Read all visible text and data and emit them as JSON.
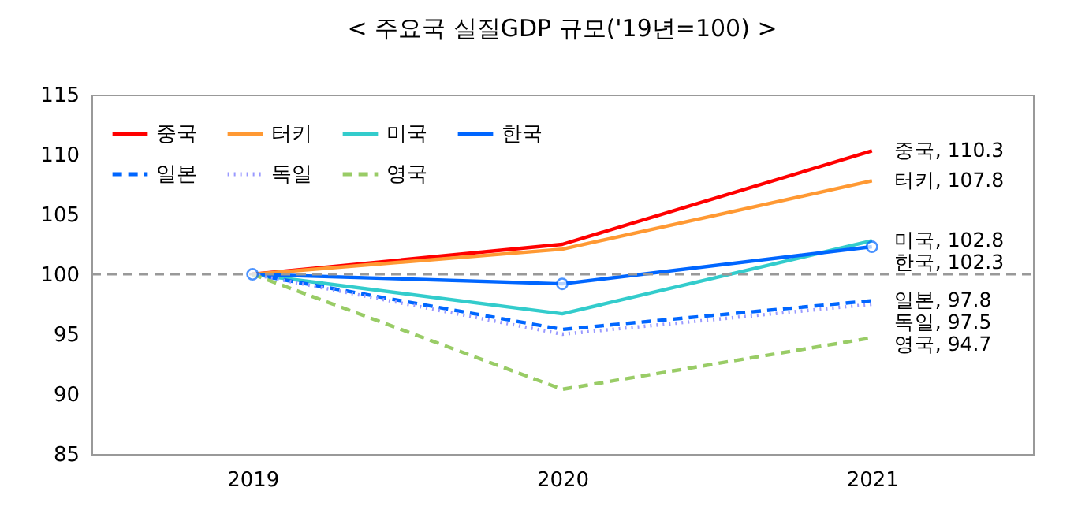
{
  "chart_data": {
    "type": "line",
    "title": "< 주요국 실질GDP 규모('19년=100) >",
    "categories": [
      "2019",
      "2020",
      "2021"
    ],
    "series": [
      {
        "name": "중국",
        "color": "#ff0000",
        "line_style": "solid",
        "marker": "none",
        "values": [
          100,
          102.5,
          110.3
        ]
      },
      {
        "name": "터키",
        "color": "#ff9933",
        "line_style": "solid",
        "marker": "none",
        "values": [
          100,
          102.1,
          107.8
        ]
      },
      {
        "name": "미국",
        "color": "#33cccc",
        "line_style": "solid",
        "marker": "none",
        "values": [
          100,
          96.7,
          102.8
        ]
      },
      {
        "name": "한국",
        "color": "#0066ff",
        "line_style": "solid",
        "marker": "circle",
        "values": [
          100,
          99.2,
          102.3
        ]
      },
      {
        "name": "일본",
        "color": "#0066ff",
        "line_style": "dashed",
        "marker": "none",
        "values": [
          100,
          95.4,
          97.8
        ]
      },
      {
        "name": "독일",
        "color": "#9999ff",
        "line_style": "dotted",
        "marker": "none",
        "values": [
          100,
          95.0,
          97.5
        ]
      },
      {
        "name": "영국",
        "color": "#99cc66",
        "line_style": "dashed",
        "marker": "none",
        "values": [
          100,
          90.4,
          94.7
        ]
      }
    ],
    "ylim": [
      85,
      115
    ],
    "yticks": [
      85,
      90,
      95,
      100,
      105,
      110,
      115
    ],
    "grid": false,
    "legend": "top left",
    "ref_lines": [
      {
        "axis": "y",
        "value": 100,
        "color": "#999999",
        "line_style": "dashed"
      }
    ],
    "annotations": [
      {
        "text": "중국, 110.3",
        "x": "2021",
        "y": 110.3
      },
      {
        "text": "터키, 107.8",
        "x": "2021",
        "y": 107.8
      },
      {
        "text": "미국, 102.8",
        "x": "2021",
        "y": 102.8
      },
      {
        "text": "한국, 102.3",
        "x": "2021",
        "y": 102.3
      },
      {
        "text": "일본, 97.8",
        "x": "2021",
        "y": 97.8
      },
      {
        "text": "독일, 97.5",
        "x": "2021",
        "y": 97.5
      },
      {
        "text": "영국, 94.7",
        "x": "2021",
        "y": 94.7
      }
    ]
  }
}
